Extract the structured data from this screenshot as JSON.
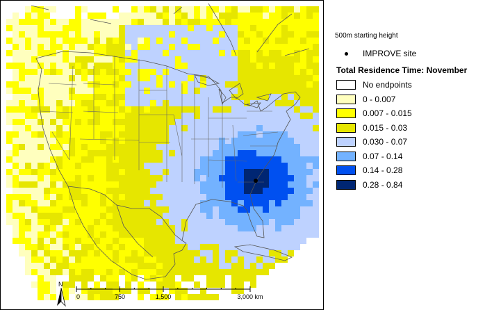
{
  "legend": {
    "starting_height": "500m starting height",
    "site_label": "IMPROVE site",
    "title": "Total Residence Time: November",
    "classes": [
      {
        "label": "No endpoints",
        "color": "#ffffff"
      },
      {
        "label": "0 - 0.007",
        "color": "#ffffbe"
      },
      {
        "label": "0.007 - 0.015",
        "color": "#ffff00"
      },
      {
        "label": "0.015 - 0.03",
        "color": "#e6e600"
      },
      {
        "label": "0.030 - 0.07",
        "color": "#bed2ff"
      },
      {
        "label": "0.07 - 0.14",
        "color": "#73b2ff"
      },
      {
        "label": "0.14 - 0.28",
        "color": "#0050f0"
      },
      {
        "label": "0.28 - 0.84",
        "color": "#002673"
      }
    ]
  },
  "north_arrow": {
    "label": "N"
  },
  "scale_bar": {
    "ticks": [
      "0",
      "750",
      "1,500",
      "3,000 km"
    ],
    "tick_km": [
      0,
      750,
      1500,
      3000
    ]
  },
  "site": {
    "name": "IMPROVE site"
  }
}
